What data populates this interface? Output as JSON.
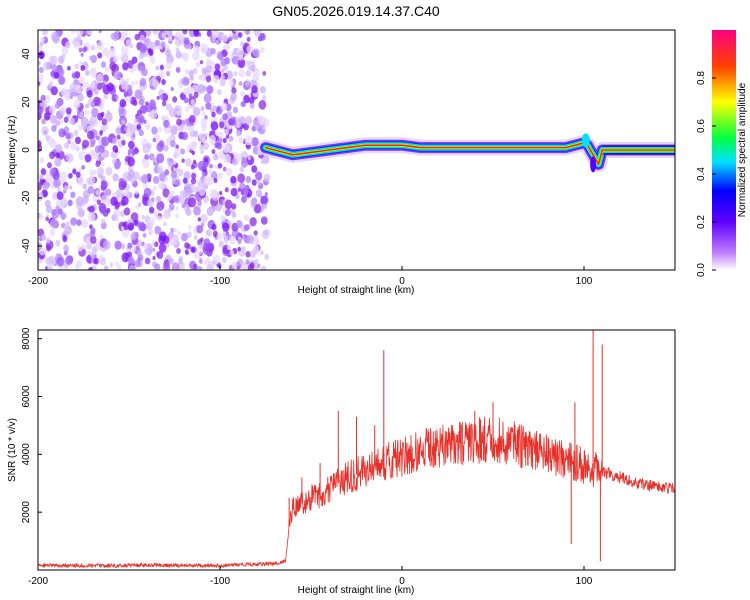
{
  "figure": {
    "title": "GN05.2026.019.14.37.C40"
  },
  "chart_data": [
    {
      "type": "heatmap",
      "title": "",
      "xlabel": "Height of straight line (km)",
      "ylabel": "Frequency (Hz)",
      "xlim": [
        -200,
        150
      ],
      "ylim": [
        -50,
        50
      ],
      "xticks": [
        -200,
        -100,
        0,
        100
      ],
      "yticks": [
        -40,
        -20,
        0,
        20,
        40
      ],
      "grid": false,
      "colorbar": {
        "label": "Normalized spectral amplitude",
        "range": [
          0,
          1
        ],
        "ticks": [
          0.0,
          0.2,
          0.4,
          0.6,
          0.8
        ],
        "colormap": [
          "#ffffff",
          "#8a2be2",
          "#0000ff",
          "#00ffff",
          "#00ff00",
          "#ffff00",
          "#ff0000",
          "#ff00ff"
        ]
      },
      "noise_region_x": [
        -200,
        -75
      ],
      "ridge": {
        "x": [
          -75,
          -70,
          -65,
          -60,
          -50,
          -40,
          -30,
          -20,
          -10,
          0,
          10,
          20,
          30,
          40,
          50,
          60,
          70,
          80,
          90,
          100,
          102,
          105,
          108,
          110,
          150
        ],
        "y": [
          1,
          0,
          -1,
          -2,
          -1,
          0,
          1,
          2,
          2,
          2,
          1,
          1,
          1,
          1,
          1,
          1,
          1,
          1,
          1,
          3,
          2,
          -2,
          -6,
          0,
          0
        ]
      }
    },
    {
      "type": "line",
      "title": "",
      "xlabel": "Height of straight line (km)",
      "ylabel": "SNR (10 * v/v)",
      "xlim": [
        -200,
        150
      ],
      "ylim": [
        0,
        8300
      ],
      "xticks": [
        -200,
        -100,
        0,
        100
      ],
      "yticks": [
        2000,
        4000,
        6000,
        8000
      ],
      "grid": false,
      "color": "#e8302a",
      "series": [
        {
          "name": "",
          "x": [
            -200,
            -180,
            -160,
            -140,
            -120,
            -100,
            -80,
            -70,
            -64,
            -62,
            -60,
            -55,
            -50,
            -45,
            -40,
            -35,
            -30,
            -25,
            -20,
            -15,
            -10,
            -5,
            0,
            5,
            10,
            15,
            20,
            25,
            30,
            35,
            40,
            45,
            50,
            55,
            60,
            65,
            70,
            75,
            80,
            85,
            90,
            95,
            100,
            105,
            110,
            115,
            120,
            125,
            130,
            135,
            140,
            145,
            150
          ],
          "y": [
            150,
            160,
            150,
            170,
            160,
            150,
            200,
            220,
            300,
            1500,
            2200,
            2300,
            2500,
            2600,
            2800,
            3000,
            3200,
            3300,
            3500,
            3600,
            3700,
            3800,
            3900,
            4000,
            4100,
            4200,
            4250,
            4300,
            4350,
            4400,
            4450,
            4500,
            4500,
            4450,
            4400,
            4300,
            4200,
            4100,
            4000,
            3900,
            3800,
            3700,
            3600,
            3500,
            3400,
            3300,
            3200,
            3100,
            3000,
            2950,
            2900,
            2850,
            2800
          ]
        }
      ],
      "spikes": [
        {
          "x": -62,
          "y": 2500
        },
        {
          "x": -55,
          "y": 3200
        },
        {
          "x": -45,
          "y": 3700
        },
        {
          "x": -35,
          "y": 5500
        },
        {
          "x": -25,
          "y": 5300
        },
        {
          "x": -15,
          "y": 5000
        },
        {
          "x": -10,
          "y": 7600
        },
        {
          "x": 40,
          "y": 5500
        },
        {
          "x": 50,
          "y": 5800
        },
        {
          "x": 93,
          "y": 900
        },
        {
          "x": 95,
          "y": 5800
        },
        {
          "x": 105,
          "y": 8300
        },
        {
          "x": 109,
          "y": 300
        },
        {
          "x": 110,
          "y": 7800
        }
      ]
    }
  ]
}
